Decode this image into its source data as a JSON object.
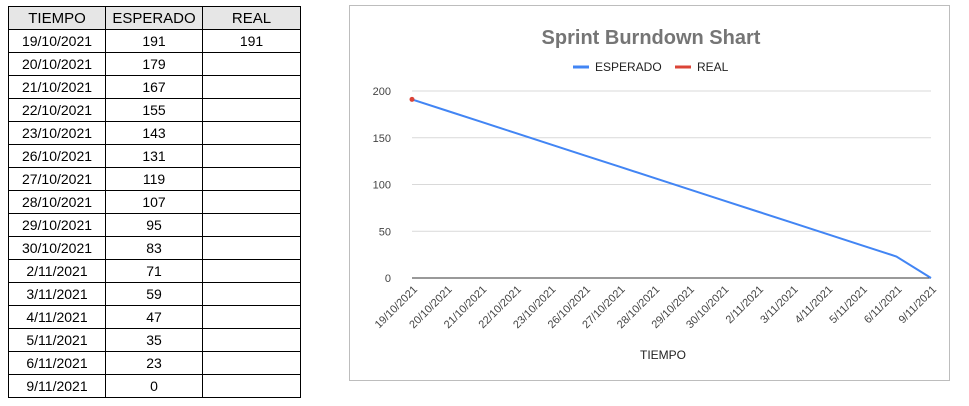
{
  "table": {
    "headers": [
      "TIEMPO",
      "ESPERADO",
      "REAL"
    ],
    "rows": [
      [
        "19/10/2021",
        "191",
        "191"
      ],
      [
        "20/10/2021",
        "179",
        ""
      ],
      [
        "21/10/2021",
        "167",
        ""
      ],
      [
        "22/10/2021",
        "155",
        ""
      ],
      [
        "23/10/2021",
        "143",
        ""
      ],
      [
        "26/10/2021",
        "131",
        ""
      ],
      [
        "27/10/2021",
        "119",
        ""
      ],
      [
        "28/10/2021",
        "107",
        ""
      ],
      [
        "29/10/2021",
        "95",
        ""
      ],
      [
        "30/10/2021",
        "83",
        ""
      ],
      [
        "2/11/2021",
        "71",
        ""
      ],
      [
        "3/11/2021",
        "59",
        ""
      ],
      [
        "4/11/2021",
        "47",
        ""
      ],
      [
        "5/11/2021",
        "35",
        ""
      ],
      [
        "6/11/2021",
        "23",
        ""
      ],
      [
        "9/11/2021",
        "0",
        ""
      ]
    ]
  },
  "chart_data": {
    "type": "line",
    "title": "Sprint Burndown Shart",
    "xlabel": "TIEMPO",
    "ylabel": "",
    "ylim": [
      0,
      200
    ],
    "yticks": [
      0,
      50,
      100,
      150,
      200
    ],
    "grid": true,
    "legend_position": "top",
    "categories": [
      "19/10/2021",
      "20/10/2021",
      "21/10/2021",
      "22/10/2021",
      "23/10/2021",
      "26/10/2021",
      "27/10/2021",
      "28/10/2021",
      "29/10/2021",
      "30/10/2021",
      "2/11/2021",
      "3/11/2021",
      "4/11/2021",
      "5/11/2021",
      "6/11/2021",
      "9/11/2021"
    ],
    "series": [
      {
        "name": "ESPERADO",
        "color": "#4285f4",
        "values": [
          191,
          179,
          167,
          155,
          143,
          131,
          119,
          107,
          95,
          83,
          71,
          59,
          47,
          35,
          23,
          0
        ]
      },
      {
        "name": "REAL",
        "color": "#db4437",
        "values": [
          191,
          null,
          null,
          null,
          null,
          null,
          null,
          null,
          null,
          null,
          null,
          null,
          null,
          null,
          null,
          null
        ]
      }
    ]
  }
}
